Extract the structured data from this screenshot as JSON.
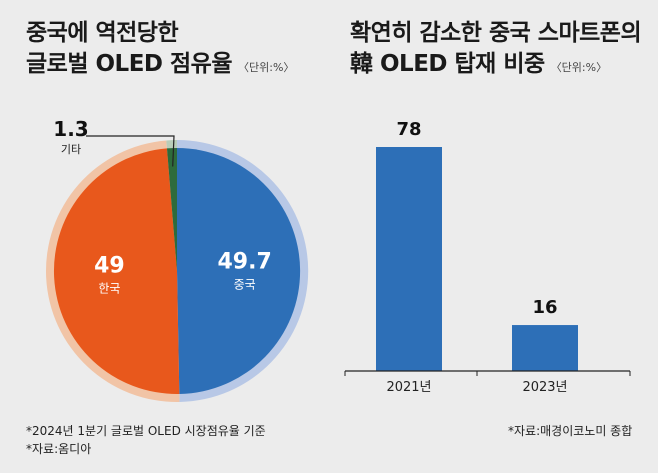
{
  "left_chart": {
    "title_line1": "중국에 역전당한",
    "title_line2": "글로벌 OLED 점유율",
    "unit": "〈단위:%〉",
    "footnote1": "*2024년 1분기 글로벌 OLED 시장점유율 기준",
    "footnote2": "*자료:옴디아"
  },
  "right_chart": {
    "title_line1": "확연히 감소한 중국 스마트폰의",
    "title_line2": "韓 OLED 탑재 비중",
    "unit": "〈단위:%〉",
    "footnote": "*자료:매경이코노미 종합"
  },
  "colors": {
    "china": "#2d6fb7",
    "korea": "#e8581c",
    "other": "#2e6b3c",
    "bar": "#2d6fb7"
  },
  "chart_data": [
    {
      "type": "pie",
      "title": "중국에 역전당한 글로벌 OLED 점유율",
      "unit": "%",
      "slices": [
        {
          "label": "중국",
          "value": 49.7,
          "color": "#2d6fb7"
        },
        {
          "label": "한국",
          "value": 49,
          "color": "#e8581c"
        },
        {
          "label": "기타",
          "value": 1.3,
          "color": "#2e6b3c"
        }
      ],
      "value_labels": [
        "49.7",
        "49",
        "1.3"
      ]
    },
    {
      "type": "bar",
      "title": "확연히 감소한 중국 스마트폰의 韓 OLED 탑재 비중",
      "unit": "%",
      "categories": [
        "2021년",
        "2023년"
      ],
      "values": [
        78,
        16
      ],
      "value_labels": [
        "78",
        "16"
      ]
    }
  ]
}
